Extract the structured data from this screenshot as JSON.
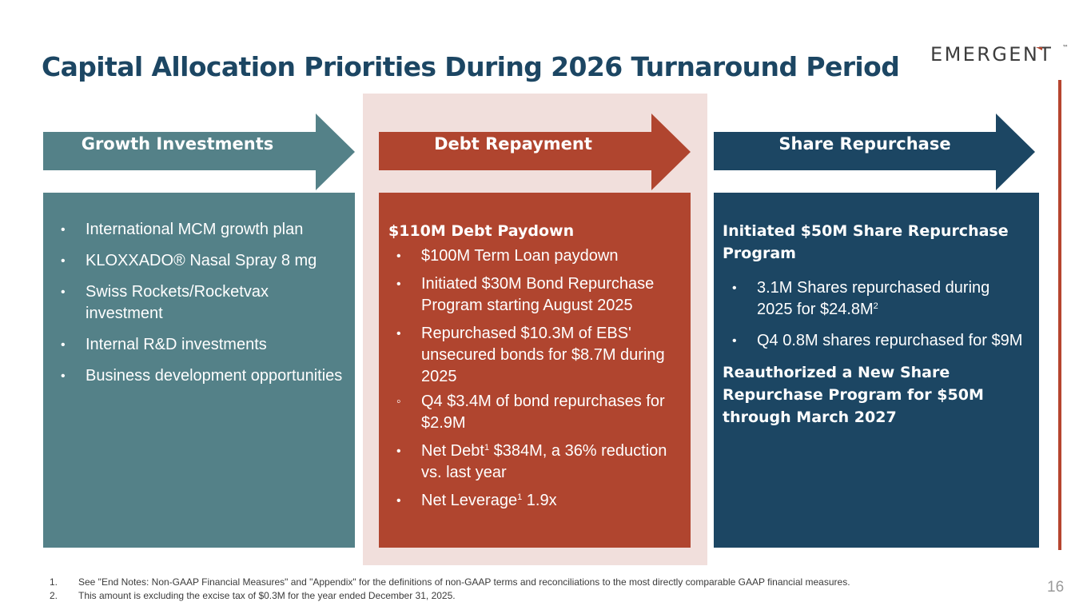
{
  "title": "Capital Allocation Priorities During 2026 Turnaround Period",
  "logo": {
    "text": "EMERGENT",
    "mark": "™"
  },
  "colors": {
    "teal": "#548188",
    "rust": "#b0452f",
    "navy": "#1c4663",
    "pink": "#f1dfdc"
  },
  "growth": {
    "label": "Growth Investments",
    "items": [
      "International MCM growth plan",
      "KLOXXADO® Nasal Spray 8 mg",
      "Swiss Rockets/Rocketvax investment",
      "Internal R&D investments",
      "Business development opportunities"
    ]
  },
  "debt": {
    "label": "Debt Repayment",
    "heading": "$110M Debt Paydown",
    "item1": "$100M Term Loan paydown",
    "item2": "Initiated $30M Bond Repurchase Program starting August 2025",
    "item3": "Repurchased $10.3M of EBS' unsecured bonds for $8.7M during 2025",
    "sub1": "Q4 $3.4M of bond repurchases for $2.9M",
    "item4_a": "Net Debt",
    "item4_sup": "1",
    "item4_b": " $384M, a 36% reduction vs. last year",
    "item5_a": "Net Leverage",
    "item5_sup": "1",
    "item5_b": " 1.9x"
  },
  "shares": {
    "label": "Share Repurchase",
    "heading1": "Initiated $50M Share Repurchase Program",
    "item1_a": "3.1M Shares repurchased during 2025 for $24.8M",
    "item1_sup": "2",
    "item2": "Q4 0.8M shares repurchased for $9M",
    "heading2": "Reauthorized a New Share Repurchase Program for $50M through March 2027"
  },
  "footnotes": [
    {
      "num": "1.",
      "text": "See \"End Notes: Non-GAAP Financial Measures\" and \"Appendix\" for the definitions of non-GAAP terms and reconciliations to the most directly comparable GAAP financial measures."
    },
    {
      "num": "2.",
      "text": "This amount is excluding the excise tax of $0.3M for the year ended December 31, 2025."
    }
  ],
  "page_number": "16"
}
